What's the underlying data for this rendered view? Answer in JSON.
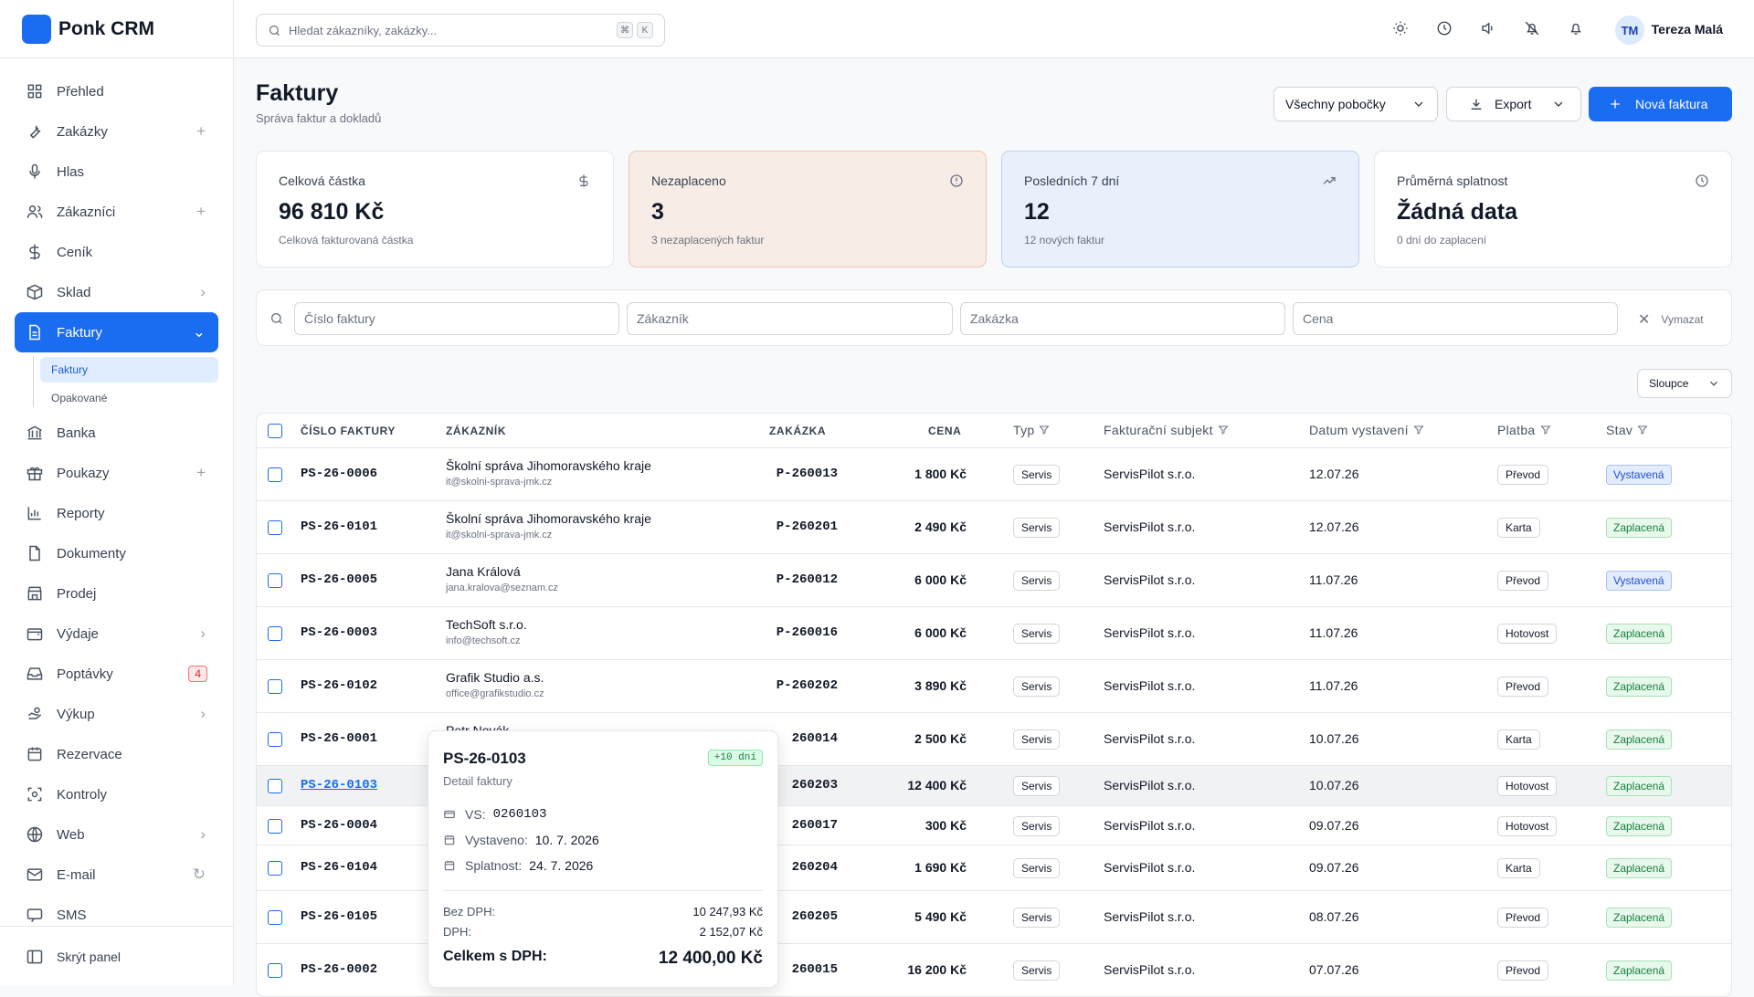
{
  "app": {
    "name": "Ponk CRM"
  },
  "search": {
    "placeholder": "Hledat zákazníky, zakázky...",
    "k1": "⌘",
    "k2": "K"
  },
  "user": {
    "initials": "TM",
    "name": "Tereza Malá"
  },
  "sidebar": {
    "items": [
      {
        "label": "Přehled",
        "icon": "grid-icon"
      },
      {
        "label": "Zakázky",
        "icon": "wrench-icon",
        "trail": "+"
      },
      {
        "label": "Hlas",
        "icon": "mic-icon"
      },
      {
        "label": "Zákazníci",
        "icon": "users-icon",
        "trail": "+"
      },
      {
        "label": "Ceník",
        "icon": "dollar-icon"
      },
      {
        "label": "Sklad",
        "icon": "box-icon",
        "trail": "›"
      },
      {
        "label": "Faktury",
        "icon": "file-icon",
        "trail": "⌄"
      },
      {
        "label": "Banka",
        "icon": "bank-icon"
      },
      {
        "label": "Poukazy",
        "icon": "gift-icon",
        "trail": "+"
      },
      {
        "label": "Reporty",
        "icon": "chart-icon"
      },
      {
        "label": "Dokumenty",
        "icon": "doc-icon"
      },
      {
        "label": "Prodej",
        "icon": "store-icon"
      },
      {
        "label": "Výdaje",
        "icon": "wallet-icon",
        "trail": "›"
      },
      {
        "label": "Poptávky",
        "icon": "inbox-icon",
        "badge": "4"
      },
      {
        "label": "Výkup",
        "icon": "hand-icon",
        "trail": "›"
      },
      {
        "label": "Rezervace",
        "icon": "calendar-icon"
      },
      {
        "label": "Kontroly",
        "icon": "scan-icon"
      },
      {
        "label": "Web",
        "icon": "globe-icon",
        "trail": "›"
      },
      {
        "label": "E-mail",
        "icon": "mail-icon",
        "trail": "↻"
      },
      {
        "label": "SMS",
        "icon": "sms-icon"
      }
    ],
    "subitems": [
      {
        "label": "Faktury"
      },
      {
        "label": "Opakované"
      }
    ],
    "footer": "Skrýt panel"
  },
  "page": {
    "title": "Faktury",
    "subtitle": "Správa faktur a dokladů"
  },
  "actions": {
    "branch": "Všechny pobočky",
    "export": "Export",
    "new": "Nová faktura"
  },
  "cards": [
    {
      "label": "Celková částka",
      "value": "96 810 Kč",
      "hint": "Celková fakturovaná částka",
      "icon": "dollar-icon"
    },
    {
      "label": "Nezaplaceno",
      "value": "3",
      "hint": "3 nezaplacených faktur",
      "icon": "alert-circle-icon"
    },
    {
      "label": "Posledních 7 dní",
      "value": "12",
      "hint": "12 nových faktur",
      "icon": "trending-up-icon"
    },
    {
      "label": "Průměrná splatnost",
      "value": "Žádná data",
      "hint": "0 dní do zaplacení",
      "icon": "clock-icon"
    }
  ],
  "filters": {
    "invoice": "Číslo faktury",
    "customer": "Zákazník",
    "order": "Zakázka",
    "price": "Cena",
    "clear": "Vymazat"
  },
  "columns_button": "Sloupce",
  "table": {
    "headers": {
      "number": "ČÍSLO FAKTURY",
      "customer": "ZÁKAZNÍK",
      "order": "ZAKÁZKA",
      "price": "CENA",
      "type": "Typ",
      "subject": "Fakturační subjekt",
      "date": "Datum vystavení",
      "payment": "Platba",
      "status": "Stav"
    },
    "rows": [
      {
        "number": "PS-26-0006",
        "name": "Školní správa Jihomoravského kraje",
        "email": "it@skolni-sprava-jmk.cz",
        "order": "P-260013",
        "price": "1 800 Kč",
        "type": "Servis",
        "subject": "ServisPilot s.r.o.",
        "date": "12.07.26",
        "payment": "Převod",
        "status": "Vystavená"
      },
      {
        "number": "PS-26-0101",
        "name": "Školní správa Jihomoravského kraje",
        "email": "it@skolni-sprava-jmk.cz",
        "order": "P-260201",
        "price": "2 490 Kč",
        "type": "Servis",
        "subject": "ServisPilot s.r.o.",
        "date": "12.07.26",
        "payment": "Karta",
        "status": "Zaplacená"
      },
      {
        "number": "PS-26-0005",
        "name": "Jana Králová",
        "email": "jana.kralova@seznam.cz",
        "order": "P-260012",
        "price": "6 000 Kč",
        "type": "Servis",
        "subject": "ServisPilot s.r.o.",
        "date": "11.07.26",
        "payment": "Převod",
        "status": "Vystavená"
      },
      {
        "number": "PS-26-0003",
        "name": "TechSoft s.r.o.",
        "email": "info@techsoft.cz",
        "order": "P-260016",
        "price": "6 000 Kč",
        "type": "Servis",
        "subject": "ServisPilot s.r.o.",
        "date": "11.07.26",
        "payment": "Hotovost",
        "status": "Zaplacená"
      },
      {
        "number": "PS-26-0102",
        "name": "Grafik Studio a.s.",
        "email": "office@grafikstudio.cz",
        "order": "P-260202",
        "price": "3 890 Kč",
        "type": "Servis",
        "subject": "ServisPilot s.r.o.",
        "date": "11.07.26",
        "payment": "Převod",
        "status": "Zaplacená"
      },
      {
        "number": "PS-26-0001",
        "name": "Petr Novák",
        "email": "",
        "order": "260014",
        "price": "2 500 Kč",
        "type": "Servis",
        "subject": "ServisPilot s.r.o.",
        "date": "10.07.26",
        "payment": "Karta",
        "status": "Zaplacená"
      },
      {
        "number": "PS-26-0103",
        "name": "",
        "email": "",
        "order": "260203",
        "price": "12 400 Kč",
        "type": "Servis",
        "subject": "ServisPilot s.r.o.",
        "date": "10.07.26",
        "payment": "Hotovost",
        "status": "Zaplacená"
      },
      {
        "number": "PS-26-0004",
        "name": "",
        "email": "",
        "order": "260017",
        "price": "300 Kč",
        "type": "Servis",
        "subject": "ServisPilot s.r.o.",
        "date": "09.07.26",
        "payment": "Hotovost",
        "status": "Zaplacená"
      },
      {
        "number": "PS-26-0104",
        "name": "",
        "email": "",
        "order": "260204",
        "price": "1 690 Kč",
        "type": "Servis",
        "subject": "ServisPilot s.r.o.",
        "date": "09.07.26",
        "payment": "Karta",
        "status": "Zaplacená"
      },
      {
        "number": "PS-26-0105",
        "name": "",
        "email": "",
        "order": "260205",
        "price": "5 490 Kč",
        "type": "Servis",
        "subject": "ServisPilot s.r.o.",
        "date": "08.07.26",
        "payment": "Převod",
        "status": "Zaplacená"
      },
      {
        "number": "PS-26-0002",
        "name": "",
        "email": "",
        "order": "260015",
        "price": "16 200 Kč",
        "type": "Servis",
        "subject": "ServisPilot s.r.o.",
        "date": "07.07.26",
        "payment": "Převod",
        "status": "Zaplacená"
      }
    ]
  },
  "popover": {
    "title": "PS-26-0103",
    "subtitle": "Detail faktury",
    "badge": "+10 dní",
    "vs_label": "VS:",
    "vs": "0260103",
    "issued_label": "Vystaveno:",
    "issued": "10. 7. 2026",
    "due_label": "Splatnost:",
    "due": "24. 7. 2026",
    "net_label": "Bez DPH:",
    "net": "10 247,93 Kč",
    "vat_label": "DPH:",
    "vat": "2 152,07 Kč",
    "total_label": "Celkem s DPH:",
    "total": "12 400,00 Kč"
  }
}
